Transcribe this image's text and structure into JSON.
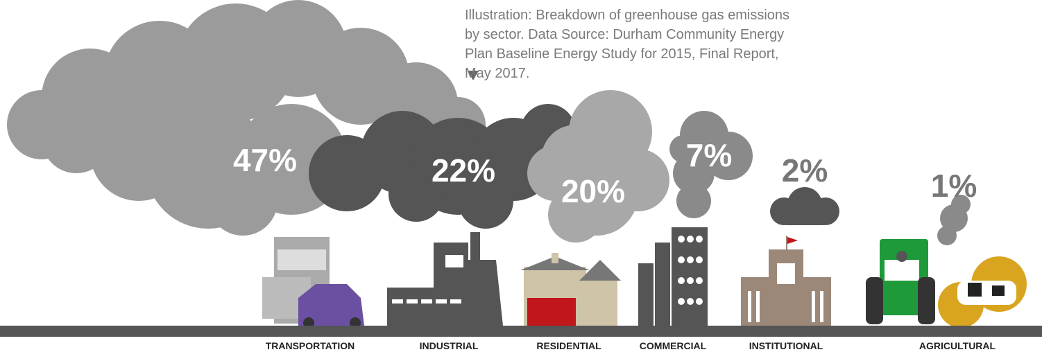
{
  "caption": "Illustration: Breakdown of greenhouse gas emissions by sector. Data Source: Durham Community Energy Plan Baseline Energy Study for 2015, Final Report, May 2017.",
  "sectors": [
    {
      "label": "TRANSPORTATION",
      "percent": "47%"
    },
    {
      "label": "INDUSTRIAL",
      "percent": "22%"
    },
    {
      "label": "RESIDENTIAL",
      "percent": "20%"
    },
    {
      "label": "COMMERCIAL",
      "percent": "7%"
    },
    {
      "label": "INSTITUTIONAL",
      "percent": "2%"
    },
    {
      "label": "AGRICULTURAL",
      "percent": "1%"
    }
  ]
}
